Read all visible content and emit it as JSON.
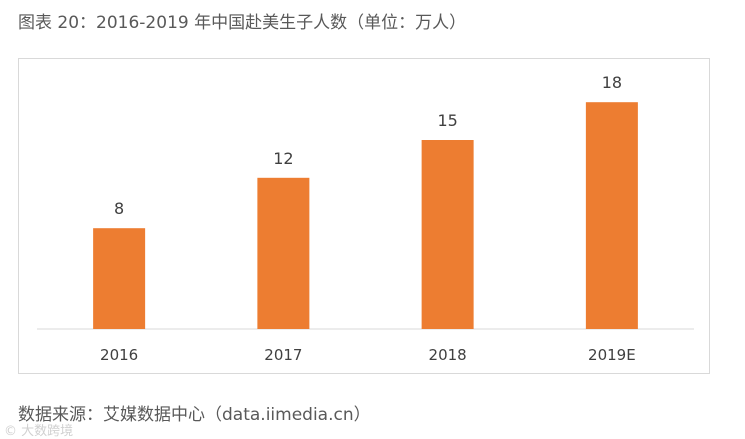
{
  "title": "图表 20：2016-2019 年中国赴美生子人数（单位：万人）",
  "source": "数据来源：艾媒数据中心（data.iimedia.cn）",
  "watermark": "© 大数跨境",
  "colors": {
    "bar": "#ed7d31",
    "axis": "#d9d9d9",
    "text": "#595959"
  },
  "chart_data": {
    "type": "bar",
    "categories": [
      "2016",
      "2017",
      "2018",
      "2019E"
    ],
    "values": [
      8,
      12,
      15,
      18
    ],
    "data_labels": [
      "8",
      "12",
      "15",
      "18"
    ],
    "title": "图表 20：2016-2019 年中国赴美生子人数（单位：万人）",
    "unit": "万人",
    "xlabel": "",
    "ylabel": "",
    "ylim": [
      0,
      20
    ],
    "grid": false,
    "legend": "none"
  }
}
